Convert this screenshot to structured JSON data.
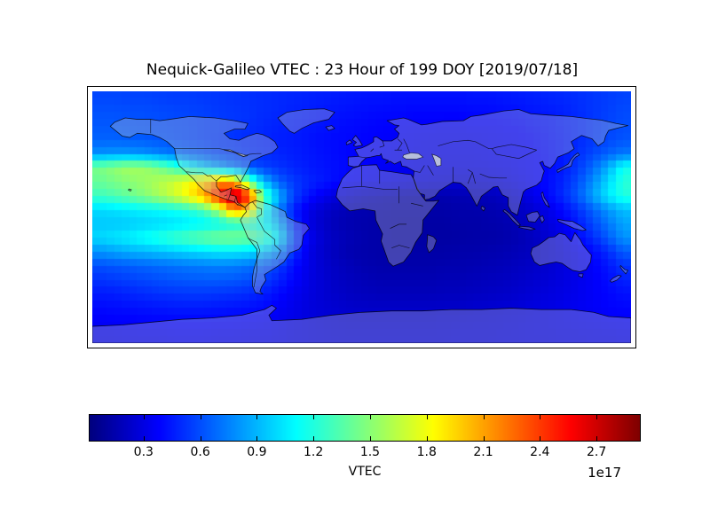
{
  "title": "Nequick-Galileo VTEC : 23 Hour of 199 DOY [2019/07/18]",
  "colorbar": {
    "label": "VTEC",
    "scale_note": "1e17",
    "tick_labels": [
      "0.3",
      "0.6",
      "0.9",
      "1.2",
      "1.5",
      "1.8",
      "2.1",
      "2.4",
      "2.7"
    ],
    "tick_values": [
      0.3,
      0.6,
      0.9,
      1.2,
      1.5,
      1.8,
      2.1,
      2.4,
      2.7
    ],
    "orientation": "horizontal"
  },
  "colors": {
    "background": "#ffffff",
    "frame": "#000000",
    "hotspot_max": "#7f0000",
    "ocean_night": "#00007f"
  },
  "chart_data": {
    "type": "heatmap",
    "title": "Nequick-Galileo VTEC : 23 Hour of 199 DOY [2019/07/18]",
    "xlabel": "",
    "ylabel": "",
    "units": "VTEC (1e17 el/m^2)",
    "colormap": "jet",
    "colormap_stops": [
      [
        0.0,
        [
          0,
          0,
          127
        ]
      ],
      [
        0.125,
        [
          0,
          0,
          255
        ]
      ],
      [
        0.375,
        [
          0,
          255,
          255
        ]
      ],
      [
        0.625,
        [
          255,
          255,
          0
        ]
      ],
      [
        0.875,
        [
          255,
          0,
          0
        ]
      ],
      [
        1.0,
        [
          127,
          0,
          0
        ]
      ]
    ],
    "vmin": 0.014,
    "vmax": 2.93,
    "grid": "lon -180..180, lat 90..-90, ~10 deg cells, values in 1e17 el/m^2",
    "x_lon": [
      -175,
      -165,
      -155,
      -145,
      -135,
      -125,
      -115,
      -105,
      -95,
      -85,
      -75,
      -65,
      -55,
      -45,
      -35,
      -25,
      -15,
      -5,
      5,
      15,
      25,
      35,
      45,
      55,
      65,
      75,
      85,
      95,
      105,
      115,
      125,
      135,
      145,
      155,
      165,
      175
    ],
    "y_lat": [
      85,
      75,
      65,
      55,
      45,
      35,
      25,
      15,
      5,
      -5,
      -15,
      -25,
      -35,
      -45,
      -55,
      -65,
      -75,
      -85
    ],
    "values_1e17": [
      [
        0.58,
        0.58,
        0.57,
        0.57,
        0.56,
        0.55,
        0.55,
        0.54,
        0.53,
        0.52,
        0.51,
        0.5,
        0.49,
        0.48,
        0.47,
        0.46,
        0.45,
        0.44,
        0.43,
        0.43,
        0.42,
        0.42,
        0.42,
        0.42,
        0.42,
        0.43,
        0.43,
        0.44,
        0.45,
        0.46,
        0.48,
        0.49,
        0.51,
        0.53,
        0.55,
        0.57
      ],
      [
        0.61,
        0.61,
        0.6,
        0.6,
        0.59,
        0.58,
        0.57,
        0.56,
        0.54,
        0.53,
        0.52,
        0.5,
        0.49,
        0.47,
        0.46,
        0.44,
        0.43,
        0.42,
        0.41,
        0.4,
        0.4,
        0.39,
        0.39,
        0.39,
        0.39,
        0.4,
        0.4,
        0.41,
        0.42,
        0.44,
        0.45,
        0.47,
        0.5,
        0.53,
        0.56,
        0.59
      ],
      [
        0.63,
        0.63,
        0.62,
        0.61,
        0.6,
        0.59,
        0.58,
        0.56,
        0.55,
        0.53,
        0.51,
        0.49,
        0.47,
        0.46,
        0.44,
        0.43,
        0.41,
        0.4,
        0.39,
        0.38,
        0.38,
        0.37,
        0.37,
        0.36,
        0.36,
        0.37,
        0.37,
        0.38,
        0.39,
        0.41,
        0.43,
        0.46,
        0.49,
        0.53,
        0.57,
        0.6
      ],
      [
        0.66,
        0.66,
        0.65,
        0.64,
        0.62,
        0.6,
        0.58,
        0.56,
        0.54,
        0.52,
        0.5,
        0.48,
        0.46,
        0.45,
        0.43,
        0.41,
        0.4,
        0.39,
        0.38,
        0.37,
        0.36,
        0.35,
        0.34,
        0.34,
        0.34,
        0.34,
        0.35,
        0.36,
        0.37,
        0.39,
        0.42,
        0.45,
        0.49,
        0.54,
        0.58,
        0.62
      ],
      [
        0.8,
        0.82,
        0.82,
        0.8,
        0.76,
        0.72,
        0.67,
        0.63,
        0.58,
        0.55,
        0.52,
        0.5,
        0.48,
        0.46,
        0.44,
        0.42,
        0.4,
        0.38,
        0.37,
        0.36,
        0.35,
        0.34,
        0.33,
        0.33,
        0.33,
        0.33,
        0.34,
        0.35,
        0.36,
        0.38,
        0.41,
        0.45,
        0.51,
        0.58,
        0.66,
        0.73
      ],
      [
        1.45,
        1.52,
        1.58,
        1.55,
        1.45,
        1.3,
        1.12,
        0.96,
        0.84,
        0.72,
        0.62,
        0.56,
        0.52,
        0.48,
        0.45,
        0.43,
        0.41,
        0.39,
        0.37,
        0.35,
        0.34,
        0.33,
        0.32,
        0.31,
        0.31,
        0.31,
        0.32,
        0.33,
        0.35,
        0.37,
        0.4,
        0.45,
        0.54,
        0.68,
        0.88,
        1.15
      ],
      [
        1.4,
        1.45,
        1.5,
        1.55,
        1.62,
        1.7,
        1.82,
        1.98,
        2.18,
        2.05,
        1.4,
        0.92,
        0.65,
        0.54,
        0.48,
        0.44,
        0.4,
        0.37,
        0.35,
        0.33,
        0.31,
        0.29,
        0.28,
        0.27,
        0.26,
        0.26,
        0.27,
        0.29,
        0.32,
        0.36,
        0.41,
        0.48,
        0.6,
        0.78,
        1.0,
        1.22
      ],
      [
        1.28,
        1.33,
        1.4,
        1.48,
        1.58,
        1.7,
        1.86,
        2.1,
        2.52,
        2.9,
        2.45,
        1.35,
        0.88,
        0.56,
        0.42,
        0.33,
        0.27,
        0.22,
        0.19,
        0.17,
        0.16,
        0.15,
        0.15,
        0.15,
        0.16,
        0.17,
        0.18,
        0.21,
        0.26,
        0.32,
        0.4,
        0.5,
        0.64,
        0.84,
        1.05,
        1.2
      ],
      [
        1.0,
        1.02,
        1.05,
        1.08,
        1.1,
        1.14,
        1.2,
        1.32,
        1.58,
        2.15,
        1.95,
        1.15,
        0.74,
        0.46,
        0.31,
        0.24,
        0.19,
        0.16,
        0.15,
        0.14,
        0.13,
        0.13,
        0.13,
        0.13,
        0.14,
        0.14,
        0.15,
        0.17,
        0.2,
        0.25,
        0.31,
        0.4,
        0.51,
        0.65,
        0.8,
        0.92
      ],
      [
        0.95,
        0.95,
        0.96,
        0.98,
        1.0,
        1.02,
        1.05,
        1.08,
        1.12,
        1.18,
        1.22,
        1.1,
        0.88,
        0.5,
        0.3,
        0.22,
        0.17,
        0.15,
        0.14,
        0.13,
        0.12,
        0.12,
        0.12,
        0.12,
        0.13,
        0.13,
        0.14,
        0.15,
        0.18,
        0.22,
        0.28,
        0.35,
        0.45,
        0.58,
        0.72,
        0.85
      ],
      [
        1.0,
        1.04,
        1.08,
        1.14,
        1.2,
        1.28,
        1.34,
        1.4,
        1.45,
        1.46,
        1.42,
        1.3,
        1.05,
        0.58,
        0.34,
        0.24,
        0.19,
        0.16,
        0.14,
        0.13,
        0.12,
        0.12,
        0.12,
        0.12,
        0.12,
        0.13,
        0.13,
        0.14,
        0.16,
        0.2,
        0.25,
        0.31,
        0.4,
        0.5,
        0.64,
        0.8
      ],
      [
        0.8,
        0.84,
        0.88,
        0.9,
        0.93,
        0.96,
        0.99,
        1.02,
        1.05,
        1.05,
        1.02,
        0.94,
        0.78,
        0.5,
        0.31,
        0.23,
        0.18,
        0.15,
        0.14,
        0.13,
        0.13,
        0.13,
        0.13,
        0.13,
        0.14,
        0.14,
        0.15,
        0.16,
        0.18,
        0.2,
        0.24,
        0.28,
        0.33,
        0.4,
        0.5,
        0.64
      ],
      [
        0.6,
        0.62,
        0.64,
        0.66,
        0.68,
        0.7,
        0.72,
        0.73,
        0.74,
        0.73,
        0.7,
        0.64,
        0.54,
        0.41,
        0.31,
        0.24,
        0.2,
        0.17,
        0.15,
        0.14,
        0.14,
        0.14,
        0.14,
        0.15,
        0.15,
        0.16,
        0.17,
        0.18,
        0.2,
        0.22,
        0.25,
        0.28,
        0.32,
        0.37,
        0.44,
        0.52
      ],
      [
        0.52,
        0.54,
        0.56,
        0.58,
        0.6,
        0.62,
        0.63,
        0.64,
        0.64,
        0.63,
        0.6,
        0.55,
        0.47,
        0.38,
        0.3,
        0.25,
        0.21,
        0.19,
        0.17,
        0.16,
        0.16,
        0.16,
        0.16,
        0.17,
        0.17,
        0.18,
        0.19,
        0.2,
        0.22,
        0.24,
        0.26,
        0.29,
        0.32,
        0.36,
        0.41,
        0.47
      ],
      [
        0.45,
        0.46,
        0.48,
        0.5,
        0.52,
        0.53,
        0.54,
        0.54,
        0.53,
        0.52,
        0.5,
        0.46,
        0.4,
        0.34,
        0.29,
        0.25,
        0.22,
        0.2,
        0.19,
        0.18,
        0.18,
        0.18,
        0.18,
        0.19,
        0.19,
        0.2,
        0.21,
        0.22,
        0.24,
        0.26,
        0.28,
        0.3,
        0.33,
        0.36,
        0.39,
        0.42
      ],
      [
        0.4,
        0.41,
        0.42,
        0.43,
        0.44,
        0.45,
        0.45,
        0.45,
        0.44,
        0.43,
        0.42,
        0.4,
        0.36,
        0.32,
        0.28,
        0.26,
        0.24,
        0.23,
        0.22,
        0.22,
        0.22,
        0.22,
        0.22,
        0.23,
        0.23,
        0.24,
        0.25,
        0.26,
        0.27,
        0.29,
        0.3,
        0.32,
        0.34,
        0.36,
        0.38,
        0.39
      ],
      [
        0.36,
        0.37,
        0.37,
        0.38,
        0.38,
        0.39,
        0.39,
        0.39,
        0.38,
        0.38,
        0.37,
        0.36,
        0.34,
        0.31,
        0.29,
        0.27,
        0.26,
        0.25,
        0.25,
        0.25,
        0.25,
        0.25,
        0.25,
        0.26,
        0.26,
        0.27,
        0.27,
        0.28,
        0.29,
        0.3,
        0.31,
        0.32,
        0.33,
        0.34,
        0.35,
        0.36
      ],
      [
        0.33,
        0.33,
        0.34,
        0.34,
        0.34,
        0.35,
        0.35,
        0.35,
        0.34,
        0.34,
        0.33,
        0.33,
        0.32,
        0.3,
        0.29,
        0.28,
        0.27,
        0.27,
        0.27,
        0.27,
        0.27,
        0.27,
        0.27,
        0.27,
        0.28,
        0.28,
        0.28,
        0.29,
        0.29,
        0.3,
        0.3,
        0.31,
        0.31,
        0.32,
        0.32,
        0.33
      ]
    ],
    "colorbar_ticks": [
      "0.3",
      "0.6",
      "0.9",
      "1.2",
      "1.5",
      "1.8",
      "2.1",
      "2.4",
      "2.7"
    ],
    "legend_position": "bottom",
    "grid_lines": false
  }
}
